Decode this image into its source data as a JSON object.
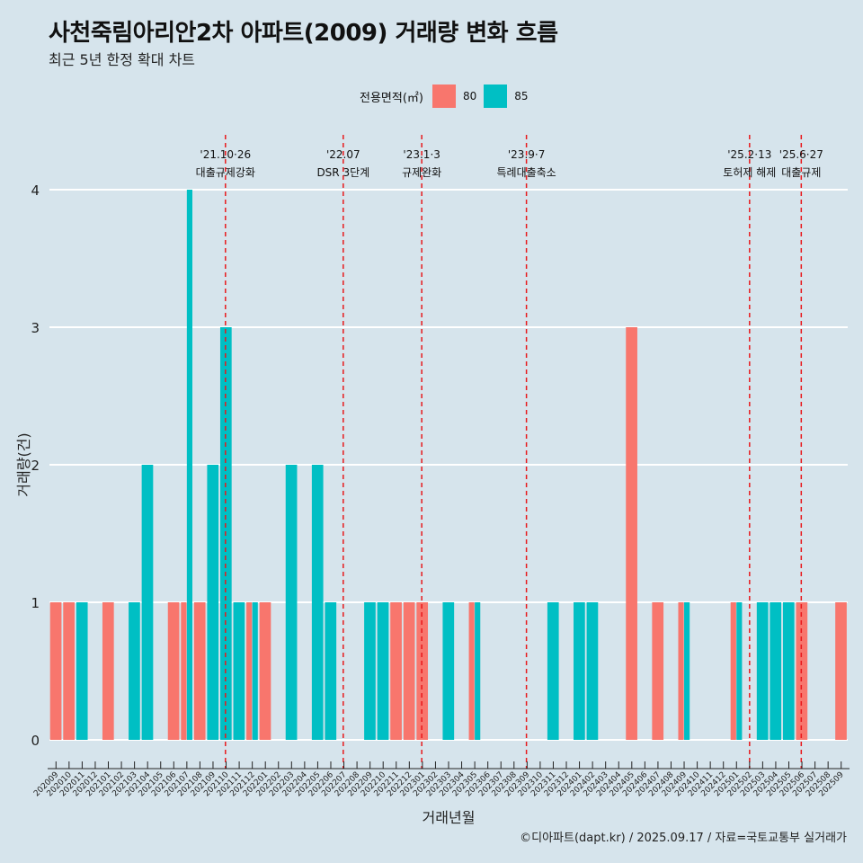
{
  "title": "사천죽림아리안2차 아파트(2009) 거래량 변화 흐름",
  "subtitle": "최근 5년 한정 확대 차트",
  "caption": "©디아파트(dapt.kr) / 2025.09.17 / 자료=국토교통부 실거래가",
  "legend": {
    "title": "전용면적(㎡)",
    "items": [
      {
        "label": "80",
        "color": "#f8766d"
      },
      {
        "label": "85",
        "color": "#00bfc4"
      }
    ]
  },
  "chart_data": {
    "type": "bar",
    "xlabel": "거래년월",
    "ylabel": "거래량(건)",
    "ylim": [
      0,
      4
    ],
    "yticks": [
      0,
      1,
      2,
      3,
      4
    ],
    "grid": "horizontal",
    "legend_position": "top",
    "categories": [
      "202009",
      "202010",
      "202011",
      "202012",
      "202101",
      "202102",
      "202103",
      "202104",
      "202105",
      "202106",
      "202107",
      "202108",
      "202109",
      "202110",
      "202111",
      "202112",
      "202201",
      "202202",
      "202203",
      "202204",
      "202205",
      "202206",
      "202207",
      "202208",
      "202209",
      "202210",
      "202211",
      "202212",
      "202301",
      "202302",
      "202303",
      "202304",
      "202305",
      "202306",
      "202307",
      "202308",
      "202309",
      "202310",
      "202311",
      "202312",
      "202401",
      "202402",
      "202403",
      "202404",
      "202405",
      "202406",
      "202407",
      "202408",
      "202409",
      "202410",
      "202411",
      "202412",
      "202501",
      "202502",
      "202503",
      "202504",
      "202505",
      "202506",
      "202507",
      "202508",
      "202509"
    ],
    "series": [
      {
        "name": "80",
        "color": "#f8766d",
        "values": [
          1,
          1,
          0,
          0,
          1,
          0,
          0,
          0,
          0,
          1,
          1,
          1,
          0,
          0,
          0,
          1,
          1,
          0,
          0,
          0,
          0,
          0,
          0,
          0,
          0,
          0,
          1,
          1,
          1,
          0,
          0,
          0,
          1,
          0,
          0,
          0,
          0,
          0,
          0,
          0,
          0,
          0,
          0,
          0,
          3,
          0,
          1,
          0,
          1,
          0,
          0,
          0,
          1,
          0,
          0,
          0,
          0,
          1,
          0,
          0,
          1
        ]
      },
      {
        "name": "85",
        "color": "#00bfc4",
        "values": [
          0,
          0,
          1,
          0,
          0,
          0,
          1,
          2,
          0,
          0,
          4,
          0,
          2,
          3,
          1,
          1,
          0,
          0,
          2,
          0,
          2,
          1,
          0,
          0,
          1,
          1,
          0,
          0,
          0,
          0,
          1,
          0,
          1,
          0,
          0,
          0,
          0,
          0,
          1,
          0,
          1,
          1,
          0,
          0,
          0,
          0,
          0,
          0,
          1,
          0,
          0,
          0,
          1,
          0,
          1,
          1,
          1,
          0,
          0,
          0,
          0
        ]
      }
    ],
    "annotations": [
      {
        "x": "202110",
        "date": "'21.10·26",
        "label": "대출규제강화"
      },
      {
        "x": "202207",
        "date": "'22.07",
        "label": "DSR 3단계"
      },
      {
        "x": "202301",
        "date": "'23.1·3",
        "label": "규제완화"
      },
      {
        "x": "202309",
        "date": "'23.9·7",
        "label": "특례대출축소"
      },
      {
        "x": "202502",
        "date": "'25.2·13",
        "label": "토허제 해제"
      },
      {
        "x": "202506",
        "date": "'25.6·27",
        "label": "대출규제"
      }
    ]
  }
}
